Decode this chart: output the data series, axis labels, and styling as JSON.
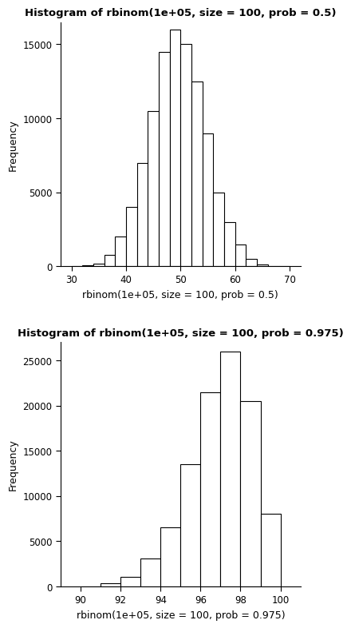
{
  "plot1": {
    "title": "Histogram of rbinom(1e+05, size = 100, prob = 0.5)",
    "xlabel": "rbinom(1e+05, size = 100, prob = 0.5)",
    "ylabel": "Frequency",
    "bin_edges": [
      30,
      32,
      34,
      36,
      38,
      40,
      42,
      44,
      46,
      48,
      50,
      52,
      54,
      56,
      58,
      60,
      62,
      64,
      66,
      68,
      70
    ],
    "bar_heights": [
      10,
      50,
      200,
      800,
      2000,
      4000,
      7000,
      10500,
      14500,
      16000,
      15000,
      12500,
      9000,
      5000,
      3000,
      1500,
      500,
      150,
      30,
      5
    ],
    "xlim": [
      28,
      72
    ],
    "ylim": [
      0,
      16500
    ],
    "yticks": [
      0,
      5000,
      10000,
      15000
    ],
    "xticks": [
      30,
      40,
      50,
      60,
      70
    ]
  },
  "plot2": {
    "title": "Histogram of rbinom(1e+05, size = 100, prob = 0.975)",
    "xlabel": "rbinom(1e+05, size = 100, prob = 0.975)",
    "ylabel": "Frequency",
    "bin_edges": [
      90,
      91,
      92,
      93,
      94,
      95,
      96,
      97,
      98,
      99,
      100
    ],
    "bar_heights": [
      5,
      350,
      1100,
      3100,
      6500,
      13500,
      21500,
      26000,
      20500,
      8000
    ],
    "xlim": [
      89,
      101
    ],
    "ylim": [
      0,
      27000
    ],
    "yticks": [
      0,
      5000,
      10000,
      15000,
      20000,
      25000
    ],
    "xticks": [
      90,
      92,
      94,
      96,
      98,
      100
    ]
  },
  "bar_color": "#ffffff",
  "bar_edgecolor": "#000000",
  "bg_color": "#ffffff",
  "title_fontsize": 9.5,
  "label_fontsize": 9,
  "tick_fontsize": 8.5
}
